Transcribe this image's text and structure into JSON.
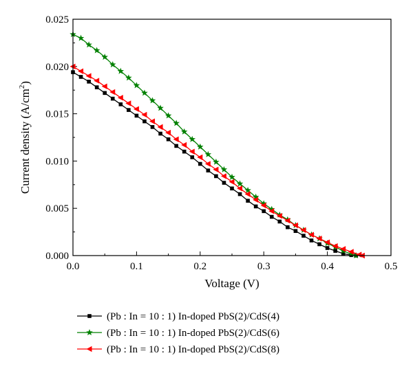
{
  "chart_data": {
    "type": "line",
    "title": "",
    "xlabel": "Voltage (V)",
    "ylabel_main": "Current density (A/cm",
    "ylabel_sup": "2",
    "ylabel_tail": ")",
    "xlim": [
      0.0,
      0.5
    ],
    "ylim": [
      0.0,
      0.025
    ],
    "x_ticks": [
      "0.0",
      "0.1",
      "0.2",
      "0.3",
      "0.4",
      "0.5"
    ],
    "y_ticks": [
      "0.000",
      "0.005",
      "0.010",
      "0.015",
      "0.020",
      "0.025"
    ],
    "grid": false,
    "legend_position": "bottom",
    "series": [
      {
        "name": "(Pb : In = 10 : 1) In-doped PbS(2)/CdS(4)",
        "color": "#000000",
        "marker": "square",
        "x": [
          0.0,
          0.0125,
          0.025,
          0.0375,
          0.05,
          0.0625,
          0.075,
          0.0875,
          0.1,
          0.1125,
          0.125,
          0.1375,
          0.15,
          0.1625,
          0.175,
          0.1875,
          0.2,
          0.2125,
          0.225,
          0.2375,
          0.25,
          0.2625,
          0.275,
          0.2875,
          0.3,
          0.3125,
          0.325,
          0.3375,
          0.35,
          0.3625,
          0.375,
          0.3875,
          0.4,
          0.4125,
          0.425,
          0.4375,
          0.445
        ],
        "y": [
          0.0194,
          0.0189,
          0.0184,
          0.0178,
          0.0172,
          0.0166,
          0.016,
          0.0154,
          0.0148,
          0.0142,
          0.0136,
          0.0129,
          0.0123,
          0.0116,
          0.011,
          0.0104,
          0.0097,
          0.009,
          0.0084,
          0.0077,
          0.0071,
          0.0065,
          0.0058,
          0.0052,
          0.0047,
          0.0041,
          0.0036,
          0.003,
          0.0026,
          0.0021,
          0.0016,
          0.0012,
          0.0008,
          0.0005,
          0.0002,
          5e-05,
          0.0
        ]
      },
      {
        "name": "(Pb : In = 10 : 1) In-doped PbS(2)/CdS(6)",
        "color": "#008000",
        "marker": "star",
        "x": [
          0.0,
          0.0125,
          0.025,
          0.0375,
          0.05,
          0.0625,
          0.075,
          0.0875,
          0.1,
          0.1125,
          0.125,
          0.1375,
          0.15,
          0.1625,
          0.175,
          0.1875,
          0.2,
          0.2125,
          0.225,
          0.2375,
          0.25,
          0.2625,
          0.275,
          0.2875,
          0.3,
          0.3125,
          0.325,
          0.3375,
          0.35,
          0.3625,
          0.375,
          0.3875,
          0.4,
          0.4125,
          0.425,
          0.4375,
          0.445
        ],
        "y": [
          0.0234,
          0.023,
          0.0223,
          0.0217,
          0.021,
          0.0202,
          0.0195,
          0.0188,
          0.018,
          0.0172,
          0.0164,
          0.0156,
          0.0148,
          0.014,
          0.0131,
          0.0123,
          0.0115,
          0.0107,
          0.0099,
          0.0091,
          0.0083,
          0.0076,
          0.0069,
          0.0062,
          0.0055,
          0.0049,
          0.0043,
          0.0038,
          0.0032,
          0.0027,
          0.0022,
          0.0018,
          0.0013,
          0.0009,
          0.0005,
          0.00015,
          0.0
        ]
      },
      {
        "name": "(Pb : In = 10 : 1) In-doped PbS(2)/CdS(8)",
        "color": "#ff0000",
        "marker": "triangle-left",
        "x": [
          0.0,
          0.0125,
          0.025,
          0.0375,
          0.05,
          0.0625,
          0.075,
          0.0875,
          0.1,
          0.1125,
          0.125,
          0.1375,
          0.15,
          0.1625,
          0.175,
          0.1875,
          0.2,
          0.2125,
          0.225,
          0.2375,
          0.25,
          0.2625,
          0.275,
          0.2875,
          0.3,
          0.3125,
          0.325,
          0.3375,
          0.35,
          0.3625,
          0.375,
          0.3875,
          0.4,
          0.4125,
          0.425,
          0.4375,
          0.45,
          0.455
        ],
        "y": [
          0.02,
          0.0195,
          0.019,
          0.0185,
          0.0179,
          0.0173,
          0.0167,
          0.0161,
          0.0155,
          0.0149,
          0.0142,
          0.0136,
          0.013,
          0.0123,
          0.0117,
          0.011,
          0.0104,
          0.0097,
          0.0091,
          0.0084,
          0.0078,
          0.0071,
          0.0065,
          0.0059,
          0.0053,
          0.0047,
          0.0042,
          0.0037,
          0.0032,
          0.0027,
          0.0022,
          0.0018,
          0.0014,
          0.001,
          0.0007,
          0.0004,
          0.0001,
          0.0
        ]
      }
    ]
  }
}
